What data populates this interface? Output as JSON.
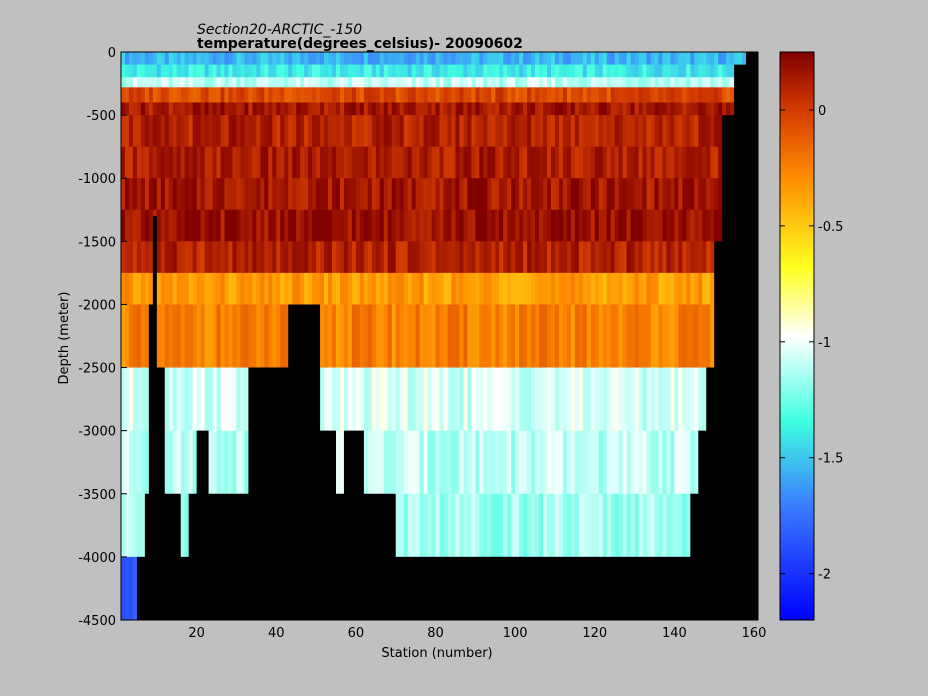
{
  "chart_data": {
    "type": "heatmap",
    "title": "Section20-ARCTIC_-150",
    "subtitle": "temperature(degrees_celsius)- 20090602",
    "xlabel": "Station (number)",
    "ylabel": "Depth (meter)",
    "xlim": [
      1,
      161
    ],
    "ylim": [
      -4500,
      0
    ],
    "x_ticks": [
      20,
      40,
      60,
      80,
      100,
      120,
      140,
      160
    ],
    "y_ticks": [
      0,
      -500,
      -1000,
      -1500,
      -2000,
      -2500,
      -3000,
      -3500,
      -4000,
      -4500
    ],
    "colorbar": {
      "range": [
        -2.2,
        0.25
      ],
      "ticks": [
        0,
        -0.5,
        -1,
        -1.5,
        -2
      ],
      "colormap": "jet"
    },
    "mask_color": "#000000",
    "depth_layers": [
      {
        "top": 0,
        "bottom": -100,
        "value": -1.55
      },
      {
        "top": -100,
        "bottom": -200,
        "value": -1.4
      },
      {
        "top": -200,
        "bottom": -280,
        "value": -1.1
      },
      {
        "top": -280,
        "bottom": -400,
        "value": -0.05
      },
      {
        "top": -400,
        "bottom": -500,
        "value": 0.15
      },
      {
        "top": -500,
        "bottom": -750,
        "value": 0.1
      },
      {
        "top": -750,
        "bottom": -1000,
        "value": 0.12
      },
      {
        "top": -1000,
        "bottom": -1250,
        "value": 0.15
      },
      {
        "top": -1250,
        "bottom": -1500,
        "value": 0.18
      },
      {
        "top": -1500,
        "bottom": -1750,
        "value": 0.1
      },
      {
        "top": -1750,
        "bottom": -2000,
        "value": -0.35
      },
      {
        "top": -2000,
        "bottom": -2500,
        "value": -0.25
      },
      {
        "top": -2500,
        "bottom": -3000,
        "value": -1.05
      },
      {
        "top": -3000,
        "bottom": -3500,
        "value": -1.1
      },
      {
        "top": -3500,
        "bottom": -4000,
        "value": -1.15
      },
      {
        "top": -4000,
        "bottom": -4500,
        "value": -1.8
      }
    ],
    "bottom_depth_by_station": [
      {
        "x": 1,
        "depth": -4500
      },
      {
        "x": 4,
        "depth": -4500
      },
      {
        "x": 5,
        "depth": -4000
      },
      {
        "x": 7,
        "depth": -3500
      },
      {
        "x": 8,
        "depth": -2000
      },
      {
        "x": 9,
        "depth": -1300
      },
      {
        "x": 10,
        "depth": -2500
      },
      {
        "x": 12,
        "depth": -3500
      },
      {
        "x": 16,
        "depth": -4000
      },
      {
        "x": 18,
        "depth": -3500
      },
      {
        "x": 20,
        "depth": -3000
      },
      {
        "x": 23,
        "depth": -3500
      },
      {
        "x": 30,
        "depth": -3500
      },
      {
        "x": 33,
        "depth": -2500
      },
      {
        "x": 43,
        "depth": -2000
      },
      {
        "x": 47,
        "depth": -2000
      },
      {
        "x": 51,
        "depth": -3000
      },
      {
        "x": 55,
        "depth": -3500
      },
      {
        "x": 57,
        "depth": -3000
      },
      {
        "x": 62,
        "depth": -3500
      },
      {
        "x": 70,
        "depth": -4000
      },
      {
        "x": 144,
        "depth": -3500
      },
      {
        "x": 146,
        "depth": -3000
      },
      {
        "x": 148,
        "depth": -2500
      },
      {
        "x": 150,
        "depth": -1500
      },
      {
        "x": 152,
        "depth": -500
      },
      {
        "x": 155,
        "depth": -100
      },
      {
        "x": 158,
        "depth": 0
      },
      {
        "x": 161,
        "depth": 0
      }
    ]
  }
}
